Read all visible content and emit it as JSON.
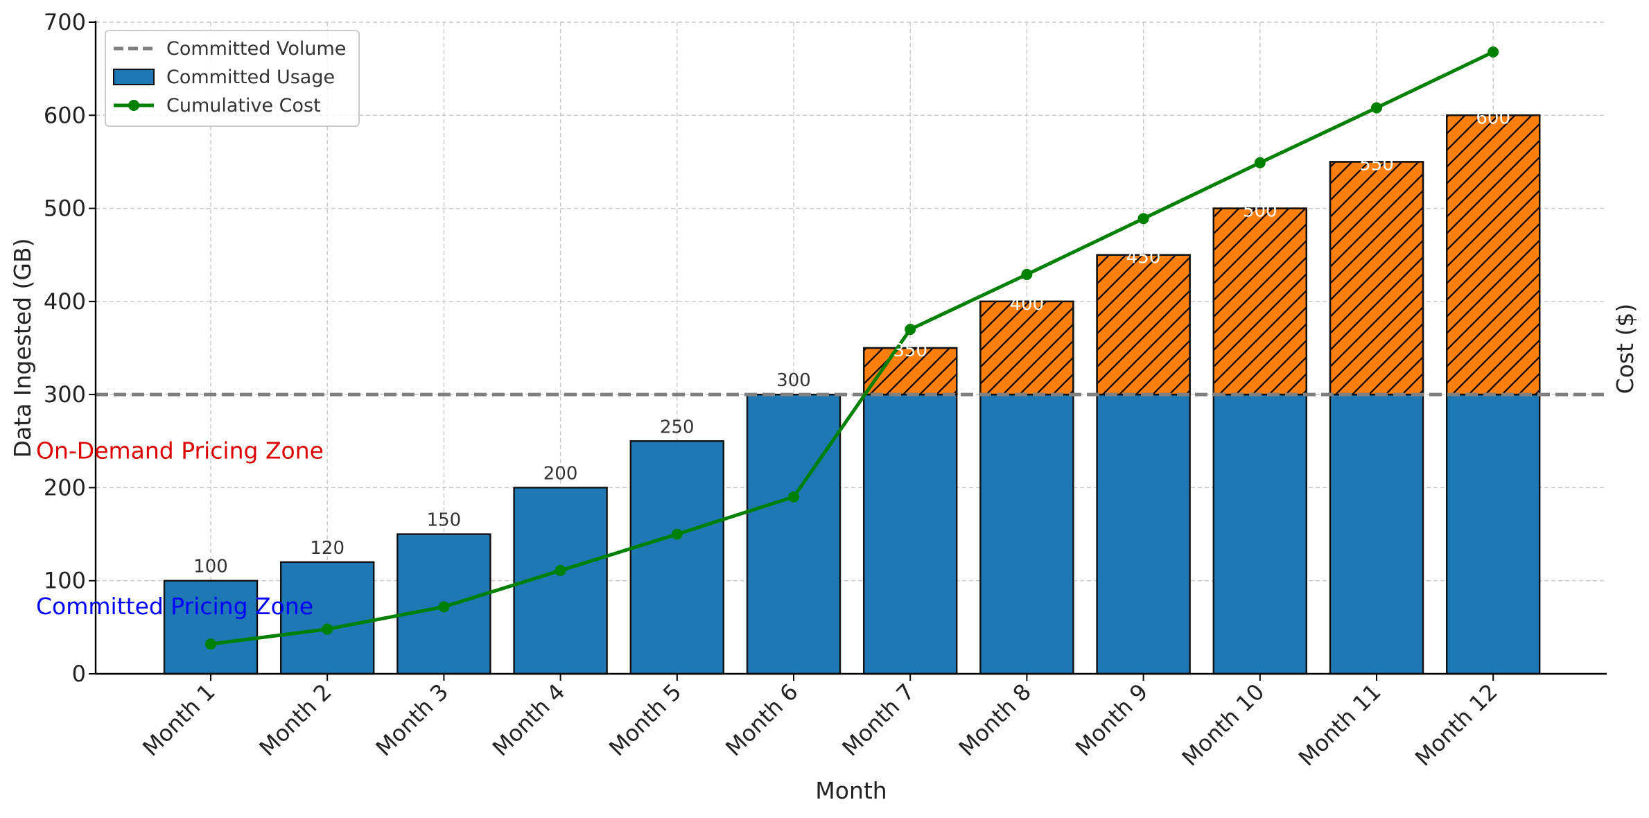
{
  "chart_data": {
    "type": "bar",
    "title": "",
    "xlabel": "Month",
    "ylabel": "Data Ingested (GB)",
    "y2label": "Cost ($)",
    "ylim": [
      0,
      700
    ],
    "yticks": [
      "0",
      "100",
      "200",
      "300",
      "400",
      "500",
      "600",
      "700"
    ],
    "categories": [
      "Month 1",
      "Month 2",
      "Month 3",
      "Month 4",
      "Month 5",
      "Month 6",
      "Month 7",
      "Month 8",
      "Month 9",
      "Month 10",
      "Month 11",
      "Month 12"
    ],
    "totals": [
      100,
      120,
      150,
      200,
      250,
      300,
      350,
      400,
      450,
      500,
      550,
      600
    ],
    "total_labels": [
      "100",
      "120",
      "150",
      "200",
      "250",
      "300",
      "350",
      "400",
      "450",
      "500",
      "550",
      "600"
    ],
    "committed_volume": 300,
    "series": [
      {
        "name": "Committed Usage",
        "type": "bar",
        "values": [
          100,
          120,
          150,
          200,
          250,
          300,
          300,
          300,
          300,
          300,
          300,
          300
        ],
        "color": "#1f77b4"
      },
      {
        "type": "bar",
        "values": [
          0,
          0,
          0,
          0,
          0,
          0,
          50,
          100,
          150,
          200,
          250,
          300
        ],
        "color": "#ff7f0e",
        "hatch": "diagonal"
      },
      {
        "name": "Cumulative Cost",
        "type": "line",
        "values": [
          32,
          48,
          72,
          111,
          150,
          190,
          370,
          429,
          489,
          549,
          608,
          668
        ],
        "color": "#008000"
      },
      {
        "name": "Committed Volume",
        "type": "hline",
        "value": 300,
        "color": "#808080"
      }
    ],
    "legend": {
      "position": "top-left",
      "items": [
        {
          "label": "Committed Volume",
          "kind": "dashed-line",
          "color": "#808080"
        },
        {
          "label": "Committed Usage",
          "kind": "patch",
          "color": "#1f77b4"
        },
        {
          "label": "Cumulative Cost",
          "kind": "line-marker",
          "color": "#008000"
        }
      ]
    },
    "annotations": [
      {
        "text": "On-Demand Pricing Zone",
        "color": "#dd0000",
        "y": 240
      },
      {
        "text": "Committed Pricing Zone",
        "color": "#0000ff",
        "y": 73
      }
    ],
    "grid": true
  }
}
